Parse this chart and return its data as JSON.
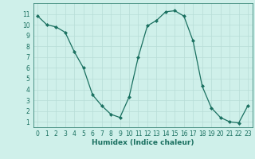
{
  "x": [
    0,
    1,
    2,
    3,
    4,
    5,
    6,
    7,
    8,
    9,
    10,
    11,
    12,
    13,
    14,
    15,
    16,
    17,
    18,
    19,
    20,
    21,
    22,
    23
  ],
  "y": [
    10.8,
    10.0,
    9.8,
    9.3,
    7.5,
    6.0,
    3.5,
    2.5,
    1.7,
    1.4,
    3.3,
    7.0,
    9.9,
    10.4,
    11.2,
    11.3,
    10.8,
    8.5,
    4.3,
    2.3,
    1.4,
    1.0,
    0.9,
    2.5
  ],
  "line_color": "#1a7060",
  "marker": "D",
  "markersize": 2.0,
  "linewidth": 0.9,
  "bg_color": "#cff0ea",
  "grid_color": "#b8ddd7",
  "xlabel": "Humidex (Indice chaleur)",
  "xlabel_fontsize": 6.5,
  "tick_fontsize": 5.5,
  "xlim": [
    -0.5,
    23.5
  ],
  "ylim": [
    0.5,
    12.0
  ],
  "yticks": [
    1,
    2,
    3,
    4,
    5,
    6,
    7,
    8,
    9,
    10,
    11
  ],
  "xticks": [
    0,
    1,
    2,
    3,
    4,
    5,
    6,
    7,
    8,
    9,
    10,
    11,
    12,
    13,
    14,
    15,
    16,
    17,
    18,
    19,
    20,
    21,
    22,
    23
  ]
}
